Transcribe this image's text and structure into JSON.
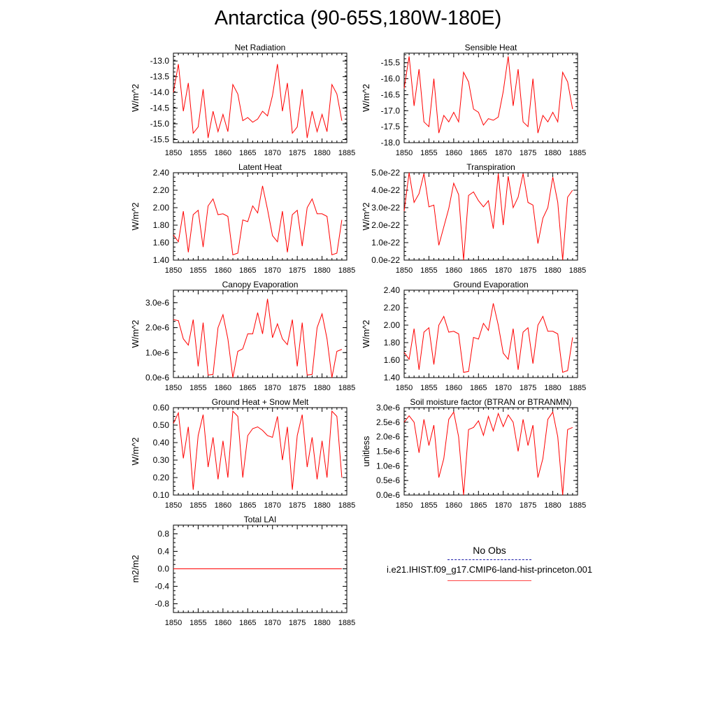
{
  "title": "Antarctica (90-65S,180W-180E)",
  "legend": {
    "obs_label": "No Obs",
    "model_label": "i.e21.IHIST.f09_g17.CMIP6-land-hist-princeton.001",
    "obs_color": "#1a1aa8",
    "model_color": "#ff0000"
  },
  "chart_data": [
    {
      "type": "line",
      "title": "Net Radiation",
      "ylabel": "W/m^2",
      "xlim": [
        1850,
        1885
      ],
      "ylim": [
        -15.6,
        -12.75
      ],
      "xticks": [
        "1850",
        "1855",
        "1860",
        "1865",
        "1870",
        "1875",
        "1880",
        "1885"
      ],
      "yticks": [
        {
          "v": -13.0,
          "label": "-13.0"
        },
        {
          "v": -13.5,
          "label": "-13.5"
        },
        {
          "v": -14.0,
          "label": "-14.0"
        },
        {
          "v": -14.5,
          "label": "-14.5"
        },
        {
          "v": -15.0,
          "label": "-15.0"
        },
        {
          "v": -15.5,
          "label": "-15.5"
        }
      ],
      "x": [
        1850,
        1851,
        1852,
        1853,
        1854,
        1855,
        1856,
        1857,
        1858,
        1859,
        1860,
        1861,
        1862,
        1863,
        1864,
        1865,
        1866,
        1867,
        1868,
        1869,
        1870,
        1871,
        1872,
        1873,
        1874,
        1875,
        1876,
        1877,
        1878,
        1879,
        1880,
        1881,
        1882,
        1883,
        1884
      ],
      "series": [
        {
          "color": "#ff0000",
          "values": [
            -14.0,
            -13.1,
            -14.6,
            -13.7,
            -15.3,
            -15.1,
            -13.9,
            -15.45,
            -14.6,
            -15.25,
            -14.7,
            -15.25,
            -13.75,
            -14.05,
            -14.9,
            -14.8,
            -14.95,
            -14.85,
            -14.6,
            -14.75,
            -14.1,
            -13.1,
            -14.6,
            -13.7,
            -15.3,
            -15.1,
            -13.9,
            -15.45,
            -14.6,
            -15.25,
            -14.7,
            -15.25,
            -13.75,
            -14.05,
            -14.9
          ]
        }
      ]
    },
    {
      "type": "line",
      "title": "Sensible Heat",
      "ylabel": "W/m^2",
      "xlim": [
        1850,
        1885
      ],
      "ylim": [
        -18.0,
        -15.2
      ],
      "xticks": [
        "1850",
        "1855",
        "1860",
        "1865",
        "1870",
        "1875",
        "1880",
        "1885"
      ],
      "yticks": [
        {
          "v": -15.5,
          "label": "-15.5"
        },
        {
          "v": -16.0,
          "label": "-16.0"
        },
        {
          "v": -16.5,
          "label": "-16.5"
        },
        {
          "v": -17.0,
          "label": "-17.0"
        },
        {
          "v": -17.5,
          "label": "-17.5"
        },
        {
          "v": -18.0,
          "label": "-18.0"
        }
      ],
      "x": [
        1850,
        1851,
        1852,
        1853,
        1854,
        1855,
        1856,
        1857,
        1858,
        1859,
        1860,
        1861,
        1862,
        1863,
        1864,
        1865,
        1866,
        1867,
        1868,
        1869,
        1870,
        1871,
        1872,
        1873,
        1874,
        1875,
        1876,
        1877,
        1878,
        1879,
        1880,
        1881,
        1882,
        1883,
        1884
      ],
      "series": [
        {
          "color": "#ff0000",
          "values": [
            -16.3,
            -15.3,
            -16.85,
            -15.7,
            -17.35,
            -17.5,
            -16.0,
            -17.7,
            -17.15,
            -17.35,
            -17.05,
            -17.35,
            -15.8,
            -16.1,
            -16.95,
            -17.05,
            -17.45,
            -17.25,
            -17.3,
            -17.2,
            -16.4,
            -15.3,
            -16.85,
            -15.7,
            -17.35,
            -17.5,
            -16.0,
            -17.7,
            -17.15,
            -17.35,
            -17.05,
            -17.35,
            -15.8,
            -16.1,
            -16.95
          ]
        }
      ]
    },
    {
      "type": "line",
      "title": "Latent Heat",
      "ylabel": "W/m^2",
      "xlim": [
        1850,
        1885
      ],
      "ylim": [
        1.4,
        2.4
      ],
      "xticks": [
        "1850",
        "1855",
        "1860",
        "1865",
        "1870",
        "1875",
        "1880",
        "1885"
      ],
      "yticks": [
        {
          "v": 1.4,
          "label": "1.40"
        },
        {
          "v": 1.6,
          "label": "1.60"
        },
        {
          "v": 1.8,
          "label": "1.80"
        },
        {
          "v": 2.0,
          "label": "2.00"
        },
        {
          "v": 2.2,
          "label": "2.20"
        },
        {
          "v": 2.4,
          "label": "2.40"
        }
      ],
      "x": [
        1850,
        1851,
        1852,
        1853,
        1854,
        1855,
        1856,
        1857,
        1858,
        1859,
        1860,
        1861,
        1862,
        1863,
        1864,
        1865,
        1866,
        1867,
        1868,
        1869,
        1870,
        1871,
        1872,
        1873,
        1874,
        1875,
        1876,
        1877,
        1878,
        1879,
        1880,
        1881,
        1882,
        1883,
        1884
      ],
      "series": [
        {
          "color": "#ff0000",
          "values": [
            1.69,
            1.61,
            1.96,
            1.49,
            1.92,
            1.97,
            1.55,
            2.02,
            2.1,
            1.92,
            1.93,
            1.9,
            1.46,
            1.48,
            1.86,
            1.84,
            2.02,
            1.94,
            2.25,
            1.98,
            1.68,
            1.61,
            1.96,
            1.49,
            1.92,
            1.97,
            1.56,
            2.0,
            2.1,
            1.93,
            1.93,
            1.9,
            1.46,
            1.48,
            1.86
          ]
        }
      ]
    },
    {
      "type": "line",
      "title": "Transpiration",
      "ylabel": "W/m^2",
      "xlim": [
        1850,
        1885
      ],
      "ylim": [
        0.0,
        5.0
      ],
      "xticks": [
        "1850",
        "1855",
        "1860",
        "1865",
        "1870",
        "1875",
        "1880",
        "1885"
      ],
      "yticks": [
        {
          "v": 0,
          "label": "0.0e-22"
        },
        {
          "v": 1,
          "label": "1.0e-22"
        },
        {
          "v": 2,
          "label": "2.0e-22"
        },
        {
          "v": 3,
          "label": "3.0e-22"
        },
        {
          "v": 4,
          "label": "4.0e-22"
        },
        {
          "v": 5,
          "label": "5.0e-22"
        }
      ],
      "x": [
        1850,
        1851,
        1852,
        1853,
        1854,
        1855,
        1856,
        1857,
        1858,
        1859,
        1860,
        1861,
        1862,
        1863,
        1864,
        1865,
        1866,
        1867,
        1868,
        1869,
        1870,
        1871,
        1872,
        1873,
        1874,
        1875,
        1876,
        1877,
        1878,
        1879,
        1880,
        1881,
        1882,
        1883,
        1884
      ],
      "series": [
        {
          "color": "#ff0000",
          "values": [
            2.8,
            5.0,
            3.3,
            3.8,
            4.95,
            3.05,
            3.15,
            0.85,
            1.9,
            2.95,
            4.4,
            3.75,
            0.0,
            3.7,
            3.9,
            3.4,
            3.05,
            3.4,
            1.8,
            4.95,
            2.0,
            4.8,
            3.0,
            3.6,
            4.95,
            3.3,
            3.15,
            0.95,
            2.4,
            3.0,
            4.75,
            3.3,
            0.0,
            3.6,
            4.0
          ]
        }
      ]
    },
    {
      "type": "line",
      "title": "Canopy Evaporation",
      "ylabel": "W/m^2",
      "xlim": [
        1850,
        1885
      ],
      "ylim": [
        0.0,
        3.5
      ],
      "xticks": [
        "1850",
        "1855",
        "1860",
        "1865",
        "1870",
        "1875",
        "1880",
        "1885"
      ],
      "yticks": [
        {
          "v": 0,
          "label": "0.0e-6"
        },
        {
          "v": 1,
          "label": "1.0e-6"
        },
        {
          "v": 2,
          "label": "2.0e-6"
        },
        {
          "v": 3,
          "label": "3.0e-6"
        }
      ],
      "x": [
        1850,
        1851,
        1852,
        1853,
        1854,
        1855,
        1856,
        1857,
        1858,
        1859,
        1860,
        1861,
        1862,
        1863,
        1864,
        1865,
        1866,
        1867,
        1868,
        1869,
        1870,
        1871,
        1872,
        1873,
        1874,
        1875,
        1876,
        1877,
        1878,
        1879,
        1880,
        1881,
        1882,
        1883,
        1884
      ],
      "series": [
        {
          "color": "#ff0000",
          "values": [
            2.32,
            2.28,
            1.55,
            1.3,
            2.32,
            0.45,
            2.2,
            0.1,
            0.13,
            2.0,
            2.52,
            1.55,
            0.0,
            1.05,
            1.15,
            1.75,
            1.75,
            2.6,
            1.75,
            3.15,
            1.6,
            2.15,
            1.55,
            1.32,
            2.32,
            0.45,
            2.2,
            0.1,
            0.13,
            2.0,
            2.55,
            1.55,
            0.0,
            1.05,
            1.13
          ]
        }
      ]
    },
    {
      "type": "line",
      "title": "Ground Evaporation",
      "ylabel": "W/m^2",
      "xlim": [
        1850,
        1885
      ],
      "ylim": [
        1.4,
        2.4
      ],
      "xticks": [
        "1850",
        "1855",
        "1860",
        "1865",
        "1870",
        "1875",
        "1880",
        "1885"
      ],
      "yticks": [
        {
          "v": 1.4,
          "label": "1.40"
        },
        {
          "v": 1.6,
          "label": "1.60"
        },
        {
          "v": 1.8,
          "label": "1.80"
        },
        {
          "v": 2.0,
          "label": "2.00"
        },
        {
          "v": 2.2,
          "label": "2.20"
        },
        {
          "v": 2.4,
          "label": "2.40"
        }
      ],
      "x": [
        1850,
        1851,
        1852,
        1853,
        1854,
        1855,
        1856,
        1857,
        1858,
        1859,
        1860,
        1861,
        1862,
        1863,
        1864,
        1865,
        1866,
        1867,
        1868,
        1869,
        1870,
        1871,
        1872,
        1873,
        1874,
        1875,
        1876,
        1877,
        1878,
        1879,
        1880,
        1881,
        1882,
        1883,
        1884
      ],
      "series": [
        {
          "color": "#ff0000",
          "values": [
            1.69,
            1.61,
            1.96,
            1.49,
            1.92,
            1.97,
            1.55,
            2.0,
            2.1,
            1.92,
            1.93,
            1.9,
            1.46,
            1.47,
            1.86,
            1.84,
            2.02,
            1.94,
            2.25,
            2.0,
            1.68,
            1.61,
            1.96,
            1.49,
            1.92,
            1.97,
            1.56,
            2.0,
            2.1,
            1.93,
            1.93,
            1.9,
            1.46,
            1.48,
            1.86
          ]
        }
      ]
    },
    {
      "type": "line",
      "title": "Ground Heat + Snow Melt",
      "ylabel": "W/m^2",
      "xlim": [
        1850,
        1885
      ],
      "ylim": [
        0.1,
        0.6
      ],
      "xticks": [
        "1850",
        "1855",
        "1860",
        "1865",
        "1870",
        "1875",
        "1880",
        "1885"
      ],
      "yticks": [
        {
          "v": 0.1,
          "label": "0.10"
        },
        {
          "v": 0.2,
          "label": "0.20"
        },
        {
          "v": 0.3,
          "label": "0.30"
        },
        {
          "v": 0.4,
          "label": "0.40"
        },
        {
          "v": 0.5,
          "label": "0.50"
        },
        {
          "v": 0.6,
          "label": "0.60"
        }
      ],
      "x": [
        1850,
        1851,
        1852,
        1853,
        1854,
        1855,
        1856,
        1857,
        1858,
        1859,
        1860,
        1861,
        1862,
        1863,
        1864,
        1865,
        1866,
        1867,
        1868,
        1869,
        1870,
        1871,
        1872,
        1873,
        1874,
        1875,
        1876,
        1877,
        1878,
        1879,
        1880,
        1881,
        1882,
        1883,
        1884
      ],
      "series": [
        {
          "color": "#ff0000",
          "values": [
            0.51,
            0.57,
            0.31,
            0.49,
            0.13,
            0.44,
            0.56,
            0.26,
            0.43,
            0.19,
            0.41,
            0.2,
            0.58,
            0.55,
            0.2,
            0.44,
            0.48,
            0.49,
            0.47,
            0.44,
            0.43,
            0.55,
            0.3,
            0.49,
            0.13,
            0.44,
            0.56,
            0.26,
            0.43,
            0.19,
            0.41,
            0.2,
            0.58,
            0.55,
            0.2
          ]
        }
      ]
    },
    {
      "type": "line",
      "title": "Soil moisture factor (BTRAN or BTRANMN)",
      "ylabel": "unitless",
      "xlim": [
        1850,
        1885
      ],
      "ylim": [
        0.0,
        3.0
      ],
      "xticks": [
        "1850",
        "1855",
        "1860",
        "1865",
        "1870",
        "1875",
        "1880",
        "1885"
      ],
      "yticks": [
        {
          "v": 0,
          "label": "0.0e-6"
        },
        {
          "v": 0.5,
          "label": "0.5e-6"
        },
        {
          "v": 1.0,
          "label": "1.0e-6"
        },
        {
          "v": 1.5,
          "label": "1.5e-6"
        },
        {
          "v": 2.0,
          "label": "2.0e-6"
        },
        {
          "v": 2.5,
          "label": "2.5e-6"
        },
        {
          "v": 3.0,
          "label": "3.0e-6"
        }
      ],
      "x": [
        1850,
        1851,
        1852,
        1853,
        1854,
        1855,
        1856,
        1857,
        1858,
        1859,
        1860,
        1861,
        1862,
        1863,
        1864,
        1865,
        1866,
        1867,
        1868,
        1869,
        1870,
        1871,
        1872,
        1873,
        1874,
        1875,
        1876,
        1877,
        1878,
        1879,
        1880,
        1881,
        1882,
        1883,
        1884
      ],
      "series": [
        {
          "color": "#ff0000",
          "values": [
            2.5,
            2.72,
            2.5,
            1.45,
            2.6,
            1.7,
            2.4,
            0.6,
            1.25,
            2.6,
            2.85,
            2.0,
            0.0,
            2.25,
            2.32,
            2.55,
            2.05,
            2.7,
            2.2,
            2.8,
            2.35,
            2.75,
            2.5,
            1.5,
            2.6,
            1.7,
            2.4,
            0.6,
            1.25,
            2.6,
            2.85,
            2.0,
            0.0,
            2.25,
            2.32
          ]
        }
      ]
    },
    {
      "type": "line",
      "title": "Total LAI",
      "ylabel": "m2/m2",
      "xlim": [
        1850,
        1885
      ],
      "ylim": [
        -1.0,
        1.0
      ],
      "xticks": [
        "1850",
        "1855",
        "1860",
        "1865",
        "1870",
        "1875",
        "1880",
        "1885"
      ],
      "yticks": [
        {
          "v": 0.8,
          "label": "0.8"
        },
        {
          "v": 0.4,
          "label": "0.4"
        },
        {
          "v": 0.0,
          "label": "0.0"
        },
        {
          "v": -0.4,
          "label": "-0.4"
        },
        {
          "v": -0.8,
          "label": "-0.8"
        }
      ],
      "x": [
        1850,
        1851,
        1852,
        1853,
        1854,
        1855,
        1856,
        1857,
        1858,
        1859,
        1860,
        1861,
        1862,
        1863,
        1864,
        1865,
        1866,
        1867,
        1868,
        1869,
        1870,
        1871,
        1872,
        1873,
        1874,
        1875,
        1876,
        1877,
        1878,
        1879,
        1880,
        1881,
        1882,
        1883,
        1884
      ],
      "series": [
        {
          "color": "#ff0000",
          "values": [
            0,
            0,
            0,
            0,
            0,
            0,
            0,
            0,
            0,
            0,
            0,
            0,
            0,
            0,
            0,
            0,
            0,
            0,
            0,
            0,
            0,
            0,
            0,
            0,
            0,
            0,
            0,
            0,
            0,
            0,
            0,
            0,
            0,
            0,
            0
          ]
        }
      ]
    }
  ]
}
